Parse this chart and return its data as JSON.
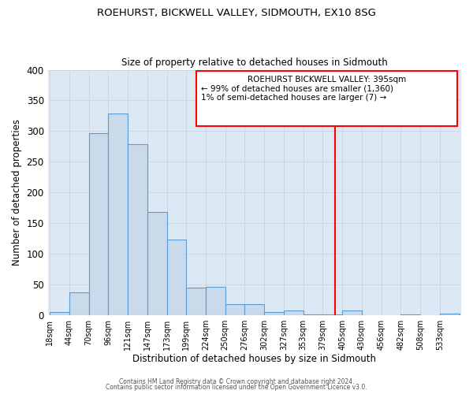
{
  "title": "ROEHURST, BICKWELL VALLEY, SIDMOUTH, EX10 8SG",
  "subtitle": "Size of property relative to detached houses in Sidmouth",
  "xlabel": "Distribution of detached houses by size in Sidmouth",
  "ylabel": "Number of detached properties",
  "bar_labels": [
    "18sqm",
    "44sqm",
    "70sqm",
    "96sqm",
    "121sqm",
    "147sqm",
    "173sqm",
    "199sqm",
    "224sqm",
    "250sqm",
    "276sqm",
    "302sqm",
    "327sqm",
    "353sqm",
    "379sqm",
    "405sqm",
    "430sqm",
    "456sqm",
    "482sqm",
    "508sqm",
    "533sqm"
  ],
  "bar_heights": [
    5,
    37,
    297,
    329,
    278,
    168,
    123,
    45,
    46,
    17,
    17,
    5,
    7,
    1,
    1,
    7,
    0,
    0,
    1,
    0,
    2
  ],
  "bar_color": "#c9daea",
  "bar_edge_color": "#5b9bd5",
  "ylim": [
    0,
    400
  ],
  "yticks": [
    0,
    50,
    100,
    150,
    200,
    250,
    300,
    350,
    400
  ],
  "annotation_title": "ROEHURST BICKWELL VALLEY: 395sqm",
  "annotation_line1": "← 99% of detached houses are smaller (1,360)",
  "annotation_line2": "1% of semi-detached houses are larger (7) →",
  "footer1": "Contains HM Land Registry data © Crown copyright and database right 2024.",
  "footer2": "Contains public sector information licensed under the Open Government Licence v3.0.",
  "bg_color": "#ffffff",
  "grid_color": "#c8d8e8",
  "ax_bg_color": "#dce9f5"
}
